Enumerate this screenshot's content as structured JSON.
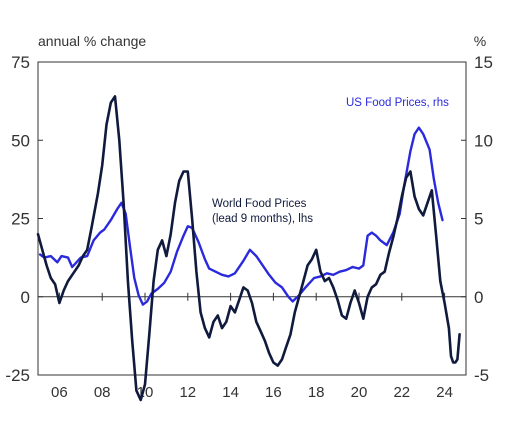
{
  "chart_data": {
    "type": "line",
    "left_axis_label": "annual % change",
    "right_axis_label": "%",
    "left_ylim": [
      -25,
      75
    ],
    "right_ylim": [
      -5,
      15
    ],
    "left_yticks": [
      75,
      50,
      25,
      0,
      -25
    ],
    "right_yticks": [
      15,
      10,
      5,
      0,
      -5
    ],
    "xlim": [
      2005.0,
      2025.0
    ],
    "xticks": [
      {
        "value": 2006,
        "label": "06"
      },
      {
        "value": 2008,
        "label": "08"
      },
      {
        "value": 2010,
        "label": "10"
      },
      {
        "value": 2012,
        "label": "12"
      },
      {
        "value": 2014,
        "label": "14"
      },
      {
        "value": 2016,
        "label": "16"
      },
      {
        "value": 2018,
        "label": "18"
      },
      {
        "value": 2020,
        "label": "20"
      },
      {
        "value": 2022,
        "label": "22"
      },
      {
        "value": 2024,
        "label": "24"
      }
    ],
    "grid": false,
    "series": [
      {
        "name": "US Food Prices, rhs",
        "axis": "right",
        "color": "#2a2adc",
        "label_lines": [
          "US Food Prices, rhs"
        ],
        "points": [
          [
            2005.1,
            2.7
          ],
          [
            2005.3,
            2.5
          ],
          [
            2005.6,
            2.6
          ],
          [
            2005.9,
            2.2
          ],
          [
            2006.1,
            2.6
          ],
          [
            2006.4,
            2.5
          ],
          [
            2006.6,
            1.9
          ],
          [
            2006.8,
            2.2
          ],
          [
            2007.0,
            2.5
          ],
          [
            2007.3,
            2.6
          ],
          [
            2007.6,
            3.6
          ],
          [
            2007.9,
            4.1
          ],
          [
            2008.1,
            4.3
          ],
          [
            2008.4,
            4.9
          ],
          [
            2008.7,
            5.6
          ],
          [
            2008.9,
            6.0
          ],
          [
            2009.1,
            5.3
          ],
          [
            2009.3,
            3.2
          ],
          [
            2009.5,
            1.2
          ],
          [
            2009.7,
            0.1
          ],
          [
            2009.9,
            -0.5
          ],
          [
            2010.1,
            -0.3
          ],
          [
            2010.3,
            0.2
          ],
          [
            2010.6,
            0.5
          ],
          [
            2010.9,
            0.9
          ],
          [
            2011.2,
            1.6
          ],
          [
            2011.5,
            2.9
          ],
          [
            2011.8,
            3.9
          ],
          [
            2012.0,
            4.5
          ],
          [
            2012.2,
            4.4
          ],
          [
            2012.5,
            3.5
          ],
          [
            2012.8,
            2.4
          ],
          [
            2013.0,
            1.8
          ],
          [
            2013.3,
            1.6
          ],
          [
            2013.6,
            1.4
          ],
          [
            2013.9,
            1.3
          ],
          [
            2014.2,
            1.5
          ],
          [
            2014.6,
            2.3
          ],
          [
            2014.9,
            3.0
          ],
          [
            2015.2,
            2.6
          ],
          [
            2015.5,
            2.0
          ],
          [
            2015.8,
            1.4
          ],
          [
            2016.1,
            0.9
          ],
          [
            2016.4,
            0.6
          ],
          [
            2016.7,
            0.0
          ],
          [
            2016.9,
            -0.3
          ],
          [
            2017.2,
            0.1
          ],
          [
            2017.5,
            0.6
          ],
          [
            2017.9,
            1.2
          ],
          [
            2018.2,
            1.3
          ],
          [
            2018.5,
            1.5
          ],
          [
            2018.8,
            1.4
          ],
          [
            2019.1,
            1.6
          ],
          [
            2019.4,
            1.7
          ],
          [
            2019.7,
            1.9
          ],
          [
            2020.0,
            1.8
          ],
          [
            2020.2,
            2.0
          ],
          [
            2020.4,
            3.9
          ],
          [
            2020.6,
            4.1
          ],
          [
            2020.8,
            3.9
          ],
          [
            2021.0,
            3.6
          ],
          [
            2021.3,
            3.3
          ],
          [
            2021.6,
            4.1
          ],
          [
            2021.9,
            5.3
          ],
          [
            2022.1,
            7.0
          ],
          [
            2022.4,
            9.3
          ],
          [
            2022.6,
            10.4
          ],
          [
            2022.8,
            10.8
          ],
          [
            2023.0,
            10.4
          ],
          [
            2023.3,
            9.4
          ],
          [
            2023.5,
            7.5
          ],
          [
            2023.7,
            6.0
          ],
          [
            2023.9,
            4.9
          ]
        ]
      },
      {
        "name": "World Food Prices (lead 9 months), lhs",
        "axis": "left",
        "color": "#0f1a3d",
        "label_lines": [
          "World Food Prices",
          "(lead 9 months), lhs"
        ],
        "points": [
          [
            2005.0,
            20
          ],
          [
            2005.2,
            15
          ],
          [
            2005.4,
            10
          ],
          [
            2005.6,
            6
          ],
          [
            2005.8,
            4
          ],
          [
            2006.0,
            -2
          ],
          [
            2006.2,
            2
          ],
          [
            2006.4,
            5
          ],
          [
            2006.7,
            8
          ],
          [
            2006.9,
            10
          ],
          [
            2007.1,
            13
          ],
          [
            2007.3,
            15
          ],
          [
            2007.5,
            22
          ],
          [
            2007.8,
            33
          ],
          [
            2008.0,
            42
          ],
          [
            2008.2,
            55
          ],
          [
            2008.4,
            62
          ],
          [
            2008.6,
            64
          ],
          [
            2008.8,
            50
          ],
          [
            2009.0,
            30
          ],
          [
            2009.2,
            5
          ],
          [
            2009.4,
            -14
          ],
          [
            2009.6,
            -30
          ],
          [
            2009.8,
            -33
          ],
          [
            2010.0,
            -28
          ],
          [
            2010.2,
            -12
          ],
          [
            2010.4,
            5
          ],
          [
            2010.6,
            15
          ],
          [
            2010.8,
            18
          ],
          [
            2011.0,
            13
          ],
          [
            2011.2,
            20
          ],
          [
            2011.4,
            30
          ],
          [
            2011.6,
            37
          ],
          [
            2011.8,
            40
          ],
          [
            2012.0,
            40
          ],
          [
            2012.2,
            25
          ],
          [
            2012.4,
            8
          ],
          [
            2012.6,
            -5
          ],
          [
            2012.8,
            -10
          ],
          [
            2013.0,
            -13
          ],
          [
            2013.2,
            -8
          ],
          [
            2013.4,
            -6
          ],
          [
            2013.6,
            -10
          ],
          [
            2013.8,
            -8
          ],
          [
            2014.0,
            -3
          ],
          [
            2014.2,
            -5
          ],
          [
            2014.4,
            -1
          ],
          [
            2014.6,
            3
          ],
          [
            2014.8,
            2
          ],
          [
            2015.0,
            -2
          ],
          [
            2015.2,
            -8
          ],
          [
            2015.4,
            -11
          ],
          [
            2015.6,
            -14
          ],
          [
            2015.8,
            -18
          ],
          [
            2016.0,
            -21
          ],
          [
            2016.2,
            -22
          ],
          [
            2016.4,
            -20
          ],
          [
            2016.6,
            -16
          ],
          [
            2016.8,
            -12
          ],
          [
            2017.0,
            -5
          ],
          [
            2017.2,
            0
          ],
          [
            2017.4,
            5
          ],
          [
            2017.6,
            10
          ],
          [
            2017.8,
            12
          ],
          [
            2018.0,
            15
          ],
          [
            2018.2,
            8
          ],
          [
            2018.4,
            5
          ],
          [
            2018.6,
            6
          ],
          [
            2018.8,
            3
          ],
          [
            2019.0,
            -1
          ],
          [
            2019.2,
            -6
          ],
          [
            2019.4,
            -7
          ],
          [
            2019.6,
            -2
          ],
          [
            2019.8,
            2
          ],
          [
            2020.0,
            -2
          ],
          [
            2020.2,
            -7
          ],
          [
            2020.4,
            0
          ],
          [
            2020.6,
            3
          ],
          [
            2020.8,
            4
          ],
          [
            2021.0,
            7
          ],
          [
            2021.2,
            8
          ],
          [
            2021.4,
            14
          ],
          [
            2021.6,
            19
          ],
          [
            2021.8,
            25
          ],
          [
            2022.0,
            32
          ],
          [
            2022.2,
            38
          ],
          [
            2022.4,
            40
          ],
          [
            2022.6,
            32
          ],
          [
            2022.8,
            28
          ],
          [
            2023.0,
            26
          ],
          [
            2023.2,
            30
          ],
          [
            2023.4,
            34
          ],
          [
            2023.6,
            20
          ],
          [
            2023.8,
            5
          ],
          [
            2024.0,
            -2
          ],
          [
            2024.2,
            -10
          ],
          [
            2024.3,
            -19
          ],
          [
            2024.4,
            -21
          ],
          [
            2024.5,
            -21
          ],
          [
            2024.6,
            -20
          ],
          [
            2024.7,
            -12
          ]
        ]
      }
    ]
  },
  "colors": {
    "us_food": "#2a2adc",
    "world_food": "#0f1a3d",
    "axis": "#333333"
  }
}
